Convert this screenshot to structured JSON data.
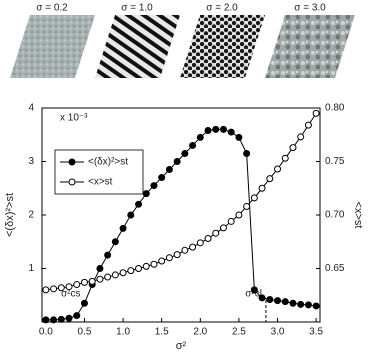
{
  "panels": [
    {
      "label": "σ = 0.2"
    },
    {
      "label": "σ = 1.0"
    },
    {
      "label": "σ = 2.0"
    },
    {
      "label": "σ = 3.0"
    }
  ],
  "chart_data": {
    "type": "line",
    "x_label": "σ²",
    "y_label": "<(δx)²>st",
    "y2_label": "<x>st",
    "y_scale_note": "x 10⁻³",
    "x": [
      0.0,
      0.1,
      0.2,
      0.3,
      0.4,
      0.5,
      0.6,
      0.7,
      0.8,
      0.9,
      1.0,
      1.1,
      1.2,
      1.3,
      1.4,
      1.5,
      1.6,
      1.7,
      1.8,
      1.9,
      2.0,
      2.1,
      2.2,
      2.3,
      2.4,
      2.5,
      2.6,
      2.7,
      2.8,
      2.9,
      3.0,
      3.1,
      3.2,
      3.3,
      3.4,
      3.5
    ],
    "series": [
      {
        "name": "<(δx)²>st",
        "color": "#000000",
        "marker": "filled",
        "axis": "y",
        "values": [
          0.04,
          0.04,
          0.05,
          0.07,
          0.12,
          0.35,
          0.7,
          1.0,
          1.25,
          1.5,
          1.75,
          2.0,
          2.2,
          2.4,
          2.55,
          2.7,
          2.85,
          3.0,
          3.15,
          3.3,
          3.45,
          3.58,
          3.6,
          3.6,
          3.55,
          3.45,
          3.15,
          0.6,
          0.45,
          0.42,
          0.4,
          0.38,
          0.35,
          0.33,
          0.32,
          0.3
        ]
      },
      {
        "name": "<x>st",
        "color": "#000000",
        "marker": "open",
        "axis": "y2",
        "values": [
          0.63,
          0.631,
          0.632,
          0.633,
          0.635,
          0.637,
          0.638,
          0.64,
          0.642,
          0.644,
          0.646,
          0.648,
          0.65,
          0.652,
          0.654,
          0.657,
          0.66,
          0.663,
          0.667,
          0.67,
          0.674,
          0.678,
          0.683,
          0.688,
          0.694,
          0.7,
          0.708,
          0.716,
          0.725,
          0.734,
          0.743,
          0.753,
          0.763,
          0.773,
          0.784,
          0.795
        ]
      }
    ],
    "xlim": [
      -0.05,
      3.55
    ],
    "xticks": [
      {
        "value": 0.0,
        "label": "0.0"
      },
      0.5,
      {
        "value": 1.0,
        "label": "1.0"
      },
      1.5,
      {
        "value": 2.0,
        "label": "2.0"
      },
      2.5,
      {
        "value": 3.0,
        "label": "3.0"
      },
      3.5
    ],
    "ylim": [
      0,
      4
    ],
    "yticks": [
      1,
      2,
      3,
      4
    ],
    "y2lim": [
      0.6,
      0.8
    ],
    "y2ticks": [
      0.65,
      {
        "value": 0.7,
        "label": "0.70"
      },
      0.75,
      {
        "value": 0.8,
        "label": "0.80"
      }
    ],
    "annotations": [
      {
        "text": "σ²cs",
        "x": 0.5,
        "dashed": false
      },
      {
        "text": "σ²cl",
        "x": 2.85,
        "dashed": true
      }
    ],
    "legend": "upper left"
  }
}
